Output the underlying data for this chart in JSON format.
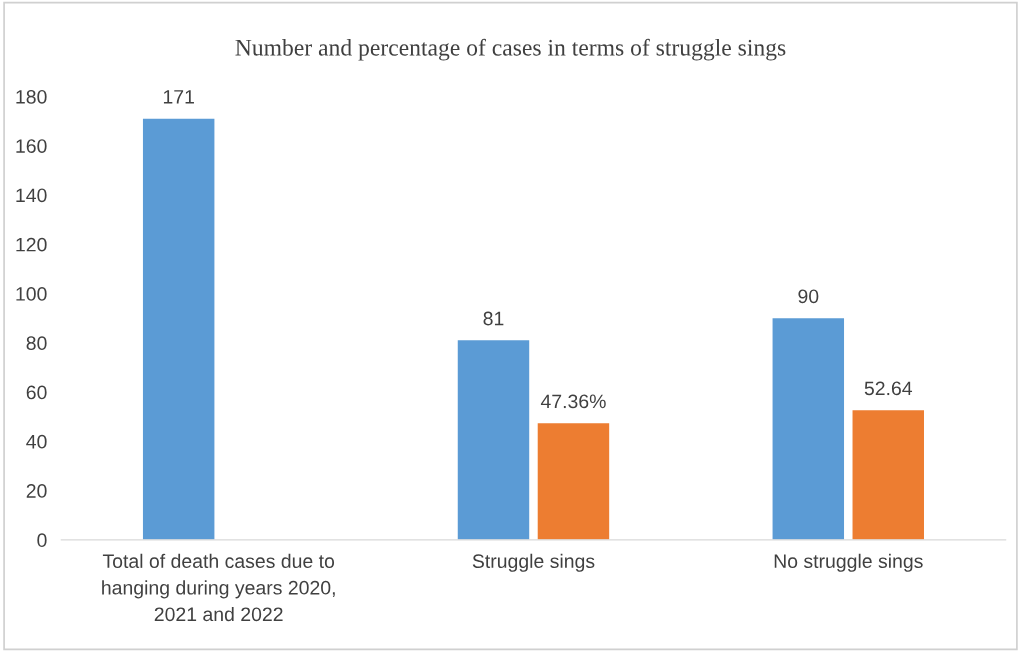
{
  "chart_data": {
    "type": "bar",
    "title": "Number and percentage of cases in terms of struggle sings",
    "categories": [
      "Total of death cases due to\nhanging during years 2020,\n2021 and 2022",
      "Struggle sings",
      "No struggle sings"
    ],
    "series": [
      {
        "color": "#5b9bd5",
        "values": [
          171,
          81,
          90
        ],
        "value_labels": [
          "171",
          "81",
          "90"
        ]
      },
      {
        "color": "#ed7d31",
        "values": [
          null,
          47.36,
          52.64
        ],
        "value_labels": [
          null,
          "47.36%",
          "52.64"
        ]
      }
    ],
    "ylim": [
      0,
      180
    ],
    "yticks": [
      0,
      20,
      40,
      60,
      80,
      100,
      120,
      140,
      160,
      180
    ],
    "grid": false,
    "legend": false
  }
}
